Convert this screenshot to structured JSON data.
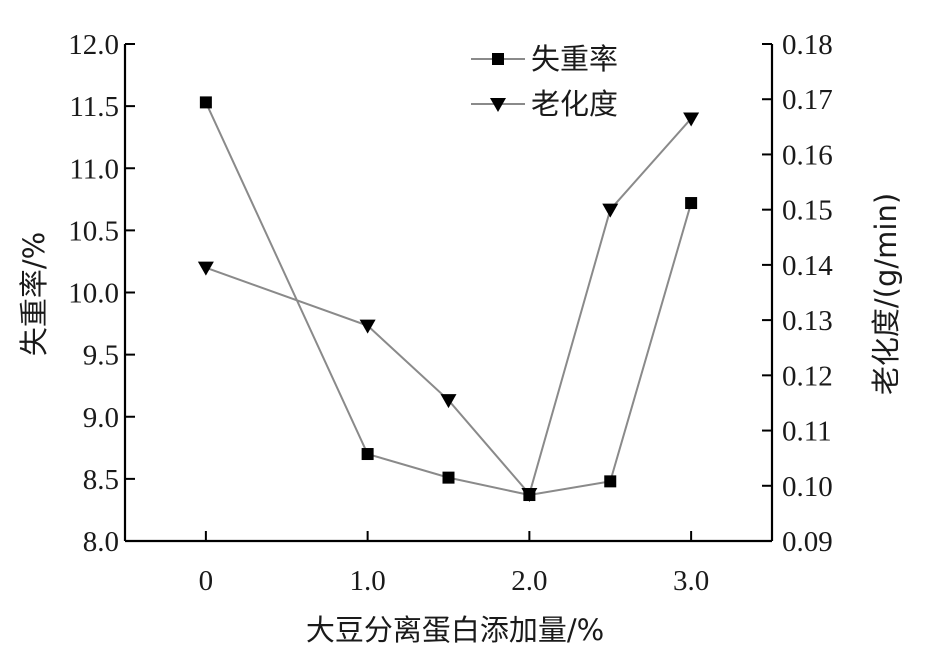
{
  "chart_data": {
    "type": "line",
    "x": [
      0,
      1.0,
      1.5,
      2.0,
      2.5,
      3.0
    ],
    "x_ticks": [
      "0",
      "1.0",
      "2.0",
      "3.0"
    ],
    "x_tick_values": [
      0,
      1,
      2,
      3
    ],
    "xlim": [
      -0.5,
      3.5
    ],
    "xlabel": "大豆分离蛋白添加量/%",
    "y_left": {
      "label": "失重率/%",
      "lim": [
        8.0,
        12.0
      ],
      "ticks": [
        "8.0",
        "8.5",
        "9.0",
        "9.5",
        "10.0",
        "10.5",
        "11.0",
        "11.5",
        "12.0"
      ],
      "tick_values": [
        8.0,
        8.5,
        9.0,
        9.5,
        10.0,
        10.5,
        11.0,
        11.5,
        12.0
      ]
    },
    "y_right": {
      "label": "老化度/(g/min)",
      "lim": [
        0.09,
        0.18
      ],
      "ticks": [
        "0.09",
        "0.10",
        "0.11",
        "0.12",
        "0.13",
        "0.14",
        "0.15",
        "0.16",
        "0.17",
        "0.18"
      ],
      "tick_values": [
        0.09,
        0.1,
        0.11,
        0.12,
        0.13,
        0.14,
        0.15,
        0.16,
        0.17,
        0.18
      ]
    },
    "series": [
      {
        "name": "失重率",
        "axis": "left",
        "marker": "square",
        "values": [
          11.53,
          8.7,
          8.51,
          8.37,
          8.48,
          10.72
        ]
      },
      {
        "name": "老化度",
        "axis": "right",
        "marker": "triangle-down",
        "values": [
          0.1395,
          0.129,
          0.1155,
          0.0985,
          0.15,
          0.1665
        ]
      }
    ],
    "legend": "top-right",
    "grid": false,
    "colors": {
      "line": "#8a8a8a",
      "marker": "#000000",
      "axis": "#000000"
    }
  }
}
